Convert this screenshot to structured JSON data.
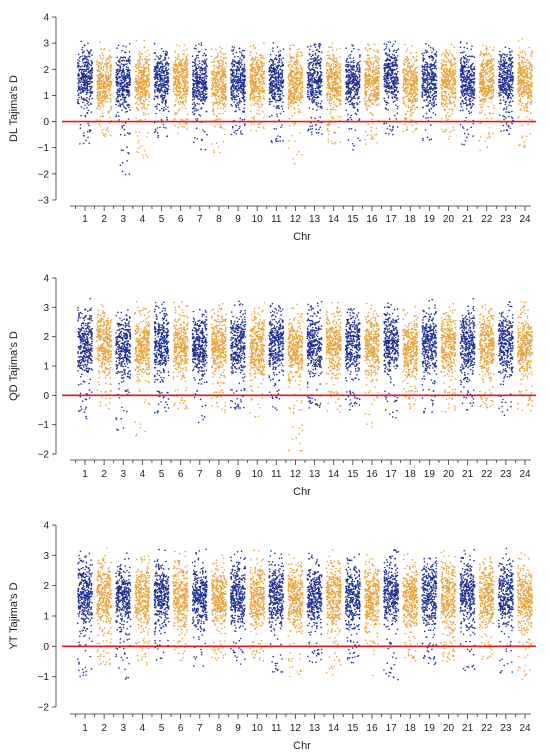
{
  "chart_data": [
    {
      "type": "scatter",
      "title": "",
      "xlabel": "Chr",
      "ylabel": "DL Tajima's D",
      "ylim": [
        -3,
        4
      ],
      "yticks": [
        -3,
        -2,
        -1,
        0,
        1,
        2,
        3,
        4
      ],
      "reference_line": {
        "y": 0,
        "color": "#e41a1c"
      },
      "categories": [
        "1",
        "2",
        "3",
        "4",
        "5",
        "6",
        "7",
        "8",
        "9",
        "10",
        "11",
        "12",
        "13",
        "14",
        "15",
        "16",
        "17",
        "18",
        "19",
        "20",
        "21",
        "22",
        "23",
        "24"
      ],
      "series": [
        {
          "category": "1",
          "color": "#1f2f8f",
          "median": 1.65,
          "min": -1.1,
          "max": 3.1
        },
        {
          "category": "2",
          "color": "#e8a23a",
          "median": 1.5,
          "min": -0.6,
          "max": 3.1
        },
        {
          "category": "3",
          "color": "#1f2f8f",
          "median": 1.5,
          "min": -2.1,
          "max": 3.0
        },
        {
          "category": "4",
          "color": "#e8a23a",
          "median": 1.5,
          "min": -1.5,
          "max": 3.2
        },
        {
          "category": "5",
          "color": "#1f2f8f",
          "median": 1.55,
          "min": -0.6,
          "max": 3.0
        },
        {
          "category": "6",
          "color": "#e8a23a",
          "median": 1.6,
          "min": -0.5,
          "max": 3.0
        },
        {
          "category": "7",
          "color": "#1f2f8f",
          "median": 1.5,
          "min": -1.1,
          "max": 3.0
        },
        {
          "category": "8",
          "color": "#e8a23a",
          "median": 1.45,
          "min": -1.4,
          "max": 3.0
        },
        {
          "category": "9",
          "color": "#1f2f8f",
          "median": 1.6,
          "min": -0.5,
          "max": 3.1
        },
        {
          "category": "10",
          "color": "#e8a23a",
          "median": 1.55,
          "min": -0.4,
          "max": 3.0
        },
        {
          "category": "11",
          "color": "#1f2f8f",
          "median": 1.6,
          "min": -0.8,
          "max": 3.2
        },
        {
          "category": "12",
          "color": "#e8a23a",
          "median": 1.5,
          "min": -1.7,
          "max": 3.1
        },
        {
          "category": "13",
          "color": "#1f2f8f",
          "median": 1.65,
          "min": -0.5,
          "max": 3.0
        },
        {
          "category": "14",
          "color": "#e8a23a",
          "median": 1.5,
          "min": -0.9,
          "max": 3.0
        },
        {
          "category": "15",
          "color": "#1f2f8f",
          "median": 1.55,
          "min": -1.1,
          "max": 3.1
        },
        {
          "category": "16",
          "color": "#e8a23a",
          "median": 1.55,
          "min": -0.9,
          "max": 3.0
        },
        {
          "category": "17",
          "color": "#1f2f8f",
          "median": 1.7,
          "min": -0.5,
          "max": 3.1
        },
        {
          "category": "18",
          "color": "#e8a23a",
          "median": 1.45,
          "min": -0.4,
          "max": 3.0
        },
        {
          "category": "19",
          "color": "#1f2f8f",
          "median": 1.55,
          "min": -0.9,
          "max": 3.0
        },
        {
          "category": "20",
          "color": "#e8a23a",
          "median": 1.5,
          "min": -0.7,
          "max": 3.0
        },
        {
          "category": "21",
          "color": "#1f2f8f",
          "median": 1.6,
          "min": -0.9,
          "max": 3.4
        },
        {
          "category": "22",
          "color": "#e8a23a",
          "median": 1.55,
          "min": -1.1,
          "max": 3.0
        },
        {
          "category": "23",
          "color": "#1f2f8f",
          "median": 1.6,
          "min": -0.6,
          "max": 3.0
        },
        {
          "category": "24",
          "color": "#e8a23a",
          "median": 1.5,
          "min": -1.1,
          "max": 3.2
        }
      ]
    },
    {
      "type": "scatter",
      "title": "",
      "xlabel": "Chr",
      "ylabel": "QD Tajima's D",
      "ylim": [
        -2,
        4
      ],
      "yticks": [
        -2,
        -1,
        0,
        1,
        2,
        3,
        4
      ],
      "reference_line": {
        "y": 0,
        "color": "#e41a1c"
      },
      "categories": [
        "1",
        "2",
        "3",
        "4",
        "5",
        "6",
        "7",
        "8",
        "9",
        "10",
        "11",
        "12",
        "13",
        "14",
        "15",
        "16",
        "17",
        "18",
        "19",
        "20",
        "21",
        "22",
        "23",
        "24"
      ],
      "series": [
        {
          "category": "1",
          "color": "#1f2f8f",
          "median": 1.75,
          "min": -0.8,
          "max": 3.4
        },
        {
          "category": "2",
          "color": "#e8a23a",
          "median": 1.7,
          "min": -0.5,
          "max": 3.3
        },
        {
          "category": "3",
          "color": "#1f2f8f",
          "median": 1.65,
          "min": -1.2,
          "max": 3.4
        },
        {
          "category": "4",
          "color": "#e8a23a",
          "median": 1.65,
          "min": -1.4,
          "max": 3.3
        },
        {
          "category": "5",
          "color": "#1f2f8f",
          "median": 1.75,
          "min": -0.6,
          "max": 3.2
        },
        {
          "category": "6",
          "color": "#e8a23a",
          "median": 1.7,
          "min": -0.5,
          "max": 3.3
        },
        {
          "category": "7",
          "color": "#1f2f8f",
          "median": 1.7,
          "min": -1.0,
          "max": 3.3
        },
        {
          "category": "8",
          "color": "#e8a23a",
          "median": 1.65,
          "min": -0.6,
          "max": 3.2
        },
        {
          "category": "9",
          "color": "#1f2f8f",
          "median": 1.75,
          "min": -0.5,
          "max": 3.3
        },
        {
          "category": "10",
          "color": "#e8a23a",
          "median": 1.65,
          "min": -0.9,
          "max": 3.2
        },
        {
          "category": "11",
          "color": "#1f2f8f",
          "median": 1.75,
          "min": -0.6,
          "max": 3.3
        },
        {
          "category": "12",
          "color": "#e8a23a",
          "median": 1.6,
          "min": -1.9,
          "max": 3.2
        },
        {
          "category": "13",
          "color": "#1f2f8f",
          "median": 1.75,
          "min": -0.5,
          "max": 3.2
        },
        {
          "category": "14",
          "color": "#e8a23a",
          "median": 1.7,
          "min": -0.6,
          "max": 3.2
        },
        {
          "category": "15",
          "color": "#1f2f8f",
          "median": 1.7,
          "min": -0.5,
          "max": 3.1
        },
        {
          "category": "16",
          "color": "#e8a23a",
          "median": 1.65,
          "min": -1.1,
          "max": 3.2
        },
        {
          "category": "17",
          "color": "#1f2f8f",
          "median": 1.8,
          "min": -0.8,
          "max": 3.3
        },
        {
          "category": "18",
          "color": "#e8a23a",
          "median": 1.6,
          "min": -0.5,
          "max": 3.2
        },
        {
          "category": "19",
          "color": "#1f2f8f",
          "median": 1.75,
          "min": -0.6,
          "max": 3.4
        },
        {
          "category": "20",
          "color": "#e8a23a",
          "median": 1.7,
          "min": -0.6,
          "max": 3.2
        },
        {
          "category": "21",
          "color": "#1f2f8f",
          "median": 1.75,
          "min": -0.6,
          "max": 3.3
        },
        {
          "category": "22",
          "color": "#e8a23a",
          "median": 1.7,
          "min": -0.5,
          "max": 3.2
        },
        {
          "category": "23",
          "color": "#1f2f8f",
          "median": 1.75,
          "min": -0.9,
          "max": 3.3
        },
        {
          "category": "24",
          "color": "#e8a23a",
          "median": 1.7,
          "min": -0.6,
          "max": 3.2
        }
      ]
    },
    {
      "type": "scatter",
      "title": "",
      "xlabel": "Chr",
      "ylabel": "YT Tajima's D",
      "ylim": [
        -2,
        4
      ],
      "yticks": [
        -2,
        -1,
        0,
        1,
        2,
        3,
        4
      ],
      "reference_line": {
        "y": 0,
        "color": "#e41a1c"
      },
      "categories": [
        "1",
        "2",
        "3",
        "4",
        "5",
        "6",
        "7",
        "8",
        "9",
        "10",
        "11",
        "12",
        "13",
        "14",
        "15",
        "16",
        "17",
        "18",
        "19",
        "20",
        "21",
        "22",
        "23",
        "24"
      ],
      "series": [
        {
          "category": "1",
          "color": "#1f2f8f",
          "median": 1.7,
          "min": -1.0,
          "max": 3.3
        },
        {
          "category": "2",
          "color": "#e8a23a",
          "median": 1.65,
          "min": -0.6,
          "max": 3.5
        },
        {
          "category": "3",
          "color": "#1f2f8f",
          "median": 1.6,
          "min": -1.1,
          "max": 3.2
        },
        {
          "category": "4",
          "color": "#e8a23a",
          "median": 1.6,
          "min": -0.8,
          "max": 3.2
        },
        {
          "category": "5",
          "color": "#1f2f8f",
          "median": 1.7,
          "min": -0.5,
          "max": 3.2
        },
        {
          "category": "6",
          "color": "#e8a23a",
          "median": 1.65,
          "min": -0.5,
          "max": 3.2
        },
        {
          "category": "7",
          "color": "#1f2f8f",
          "median": 1.65,
          "min": -0.8,
          "max": 3.2
        },
        {
          "category": "8",
          "color": "#e8a23a",
          "median": 1.6,
          "min": -0.5,
          "max": 3.1
        },
        {
          "category": "9",
          "color": "#1f2f8f",
          "median": 1.7,
          "min": -0.6,
          "max": 3.2
        },
        {
          "category": "10",
          "color": "#e8a23a",
          "median": 1.65,
          "min": -0.5,
          "max": 3.2
        },
        {
          "category": "11",
          "color": "#1f2f8f",
          "median": 1.7,
          "min": -0.9,
          "max": 3.2
        },
        {
          "category": "12",
          "color": "#e8a23a",
          "median": 1.6,
          "min": -1.2,
          "max": 3.5
        },
        {
          "category": "13",
          "color": "#1f2f8f",
          "median": 1.7,
          "min": -0.6,
          "max": 3.2
        },
        {
          "category": "14",
          "color": "#e8a23a",
          "median": 1.65,
          "min": -1.0,
          "max": 3.2
        },
        {
          "category": "15",
          "color": "#1f2f8f",
          "median": 1.65,
          "min": -0.6,
          "max": 3.1
        },
        {
          "category": "16",
          "color": "#e8a23a",
          "median": 1.6,
          "min": -1.0,
          "max": 3.2
        },
        {
          "category": "17",
          "color": "#1f2f8f",
          "median": 1.75,
          "min": -1.1,
          "max": 3.2
        },
        {
          "category": "18",
          "color": "#e8a23a",
          "median": 1.6,
          "min": -0.5,
          "max": 3.1
        },
        {
          "category": "19",
          "color": "#1f2f8f",
          "median": 1.7,
          "min": -0.6,
          "max": 3.2
        },
        {
          "category": "20",
          "color": "#e8a23a",
          "median": 1.65,
          "min": -0.5,
          "max": 3.2
        },
        {
          "category": "21",
          "color": "#1f2f8f",
          "median": 1.7,
          "min": -0.8,
          "max": 3.2
        },
        {
          "category": "22",
          "color": "#e8a23a",
          "median": 1.65,
          "min": -0.5,
          "max": 3.1
        },
        {
          "category": "23",
          "color": "#1f2f8f",
          "median": 1.7,
          "min": -1.0,
          "max": 3.3
        },
        {
          "category": "24",
          "color": "#e8a23a",
          "median": 1.6,
          "min": -1.1,
          "max": 3.2
        }
      ]
    }
  ]
}
